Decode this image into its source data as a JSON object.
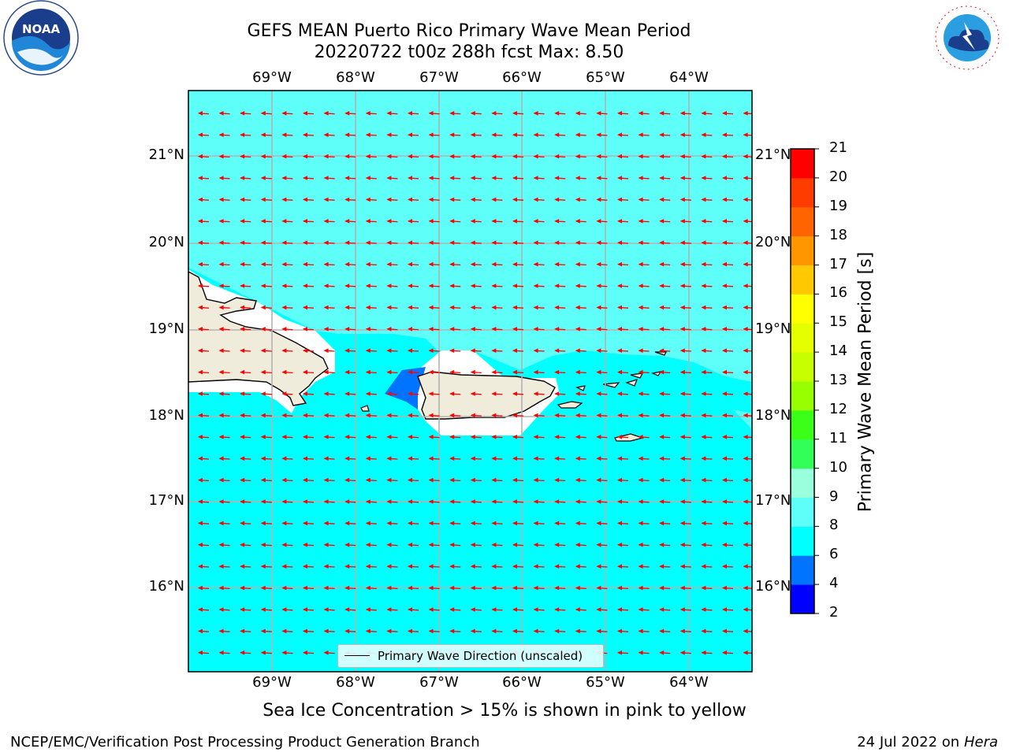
{
  "title": {
    "line1": "GEFS MEAN Puerto Rico Primary Wave Mean Period",
    "line2": "20220722 t00z 288h fcst   Max: 8.50"
  },
  "map": {
    "lon_labels": [
      "69°W",
      "68°W",
      "67°W",
      "66°W",
      "65°W",
      "64°W"
    ],
    "lat_labels": [
      "21°N",
      "20°N",
      "19°N",
      "18°N",
      "17°N",
      "16°N"
    ],
    "background_color": "#00ffff",
    "land_color": "#efecdc",
    "arrow_color": "#ff0000",
    "wave_direction": "westward",
    "legend_label": "Primary Wave Direction (unscaled)"
  },
  "colorbar": {
    "title": "Primary Wave Mean Period [s]",
    "ticks": [
      "21",
      "20",
      "19",
      "18",
      "17",
      "16",
      "15",
      "14",
      "13",
      "12",
      "11",
      "10",
      "9",
      "8",
      "6",
      "4",
      "2"
    ],
    "colors": [
      "#0000ff",
      "#0073ff",
      "#00ffff",
      "#5efff9",
      "#99ffdc",
      "#33ff59",
      "#3bff19",
      "#98ff00",
      "#c8ff00",
      "#e6ff00",
      "#ffff00",
      "#ffc800",
      "#ff9600",
      "#ff6400",
      "#ff3c00",
      "#ff0000"
    ]
  },
  "note": "Sea Ice Concentration > 15% is shown in pink to yellow",
  "footer": {
    "left": "NCEP/EMC/Verification Post Processing Product Generation Branch",
    "right_prefix": "24 Jul 2022 on ",
    "right_machine": "Hera"
  },
  "logos": {
    "noaa": "NOAA",
    "nws": "NATIONAL WEATHER SERVICE"
  }
}
